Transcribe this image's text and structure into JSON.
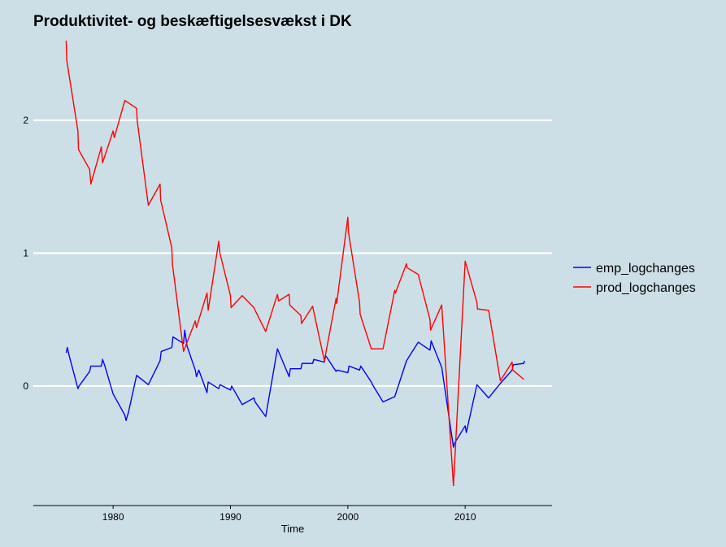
{
  "chart_data": {
    "type": "line",
    "title": "Produktivitet- og beskæftigelsesvækst i DK",
    "xlabel": "Time",
    "ylabel": "",
    "xlim": [
      1973.2,
      2017.4
    ],
    "ylim": [
      -0.9,
      2.6
    ],
    "x_ticks": [
      1980,
      1990,
      2000,
      2010
    ],
    "y_ticks": [
      0,
      1,
      2
    ],
    "grid": "horizontal-major",
    "legend_position": "right",
    "colors": {
      "background": "#cddfe6",
      "grid": "#ffffff"
    },
    "series": [
      {
        "name": "emp_logchanges",
        "color": "#0000ff",
        "points": [
          [
            1976.0,
            0.25
          ],
          [
            1976.1,
            0.29
          ],
          [
            1976.25,
            0.23
          ],
          [
            1977.0,
            -0.02
          ],
          [
            1977.1,
            0.0
          ],
          [
            1978.0,
            0.11
          ],
          [
            1978.1,
            0.15
          ],
          [
            1979.0,
            0.15
          ],
          [
            1979.1,
            0.2
          ],
          [
            1979.3,
            0.15
          ],
          [
            1980.0,
            -0.06
          ],
          [
            1981.0,
            -0.22
          ],
          [
            1981.1,
            -0.26
          ],
          [
            1981.3,
            -0.2
          ],
          [
            1982.0,
            0.08
          ],
          [
            1983.0,
            0.01
          ],
          [
            1984.0,
            0.19
          ],
          [
            1984.1,
            0.26
          ],
          [
            1985.0,
            0.29
          ],
          [
            1985.1,
            0.37
          ],
          [
            1986.0,
            0.32
          ],
          [
            1986.1,
            0.42
          ],
          [
            1986.3,
            0.3
          ],
          [
            1987.0,
            0.12
          ],
          [
            1987.1,
            0.07
          ],
          [
            1987.3,
            0.12
          ],
          [
            1988.0,
            -0.05
          ],
          [
            1988.1,
            0.03
          ],
          [
            1989.0,
            -0.02
          ],
          [
            1989.1,
            0.01
          ],
          [
            1990.0,
            -0.03
          ],
          [
            1990.1,
            0.0
          ],
          [
            1991.0,
            -0.14
          ],
          [
            1992.0,
            -0.09
          ],
          [
            1992.1,
            -0.12
          ],
          [
            1993.0,
            -0.23
          ],
          [
            1994.0,
            0.28
          ],
          [
            1995.0,
            0.07
          ],
          [
            1995.1,
            0.13
          ],
          [
            1996.0,
            0.13
          ],
          [
            1996.1,
            0.17
          ],
          [
            1997.0,
            0.17
          ],
          [
            1997.1,
            0.2
          ],
          [
            1998.0,
            0.18
          ],
          [
            1998.1,
            0.23
          ],
          [
            1999.0,
            0.11
          ],
          [
            1999.1,
            0.12
          ],
          [
            2000.0,
            0.1
          ],
          [
            2000.1,
            0.15
          ],
          [
            2001.0,
            0.12
          ],
          [
            2001.1,
            0.15
          ],
          [
            2002.0,
            0.03
          ],
          [
            2002.1,
            0.01
          ],
          [
            2003.0,
            -0.12
          ],
          [
            2004.0,
            -0.08
          ],
          [
            2005.0,
            0.19
          ],
          [
            2006.0,
            0.33
          ],
          [
            2007.0,
            0.27
          ],
          [
            2007.1,
            0.34
          ],
          [
            2008.0,
            0.14
          ],
          [
            2009.0,
            -0.46
          ],
          [
            2009.1,
            -0.43
          ],
          [
            2010.0,
            -0.3
          ],
          [
            2010.1,
            -0.35
          ],
          [
            2011.0,
            0.01
          ],
          [
            2012.0,
            -0.09
          ],
          [
            2013.0,
            0.02
          ],
          [
            2014.0,
            0.12
          ],
          [
            2014.1,
            0.16
          ],
          [
            2015.0,
            0.17
          ],
          [
            2015.05,
            0.19
          ]
        ]
      },
      {
        "name": "prod_logchanges",
        "color": "#ff0000",
        "points": [
          [
            1976.0,
            2.6
          ],
          [
            1976.05,
            2.45
          ],
          [
            1977.0,
            1.92
          ],
          [
            1977.05,
            1.78
          ],
          [
            1978.0,
            1.63
          ],
          [
            1978.1,
            1.52
          ],
          [
            1979.0,
            1.8
          ],
          [
            1979.1,
            1.68
          ],
          [
            1980.0,
            1.92
          ],
          [
            1980.1,
            1.87
          ],
          [
            1981.0,
            2.15
          ],
          [
            1982.0,
            2.09
          ],
          [
            1982.05,
            2.0
          ],
          [
            1983.0,
            1.36
          ],
          [
            1984.0,
            1.52
          ],
          [
            1984.05,
            1.4
          ],
          [
            1985.0,
            1.04
          ],
          [
            1985.05,
            0.92
          ],
          [
            1986.0,
            0.26
          ],
          [
            1987.0,
            0.49
          ],
          [
            1987.1,
            0.44
          ],
          [
            1988.0,
            0.7
          ],
          [
            1988.1,
            0.57
          ],
          [
            1989.0,
            1.09
          ],
          [
            1989.1,
            1.0
          ],
          [
            1990.0,
            0.68
          ],
          [
            1990.05,
            0.59
          ],
          [
            1991.0,
            0.68
          ],
          [
            1992.0,
            0.59
          ],
          [
            1992.1,
            0.57
          ],
          [
            1993.0,
            0.41
          ],
          [
            1994.0,
            0.69
          ],
          [
            1994.1,
            0.64
          ],
          [
            1995.0,
            0.69
          ],
          [
            1995.05,
            0.61
          ],
          [
            1996.0,
            0.53
          ],
          [
            1996.05,
            0.47
          ],
          [
            1997.0,
            0.6
          ],
          [
            1998.0,
            0.19
          ],
          [
            1999.0,
            0.66
          ],
          [
            1999.05,
            0.62
          ],
          [
            2000.0,
            1.27
          ],
          [
            2000.05,
            1.16
          ],
          [
            2001.0,
            0.63
          ],
          [
            2001.05,
            0.54
          ],
          [
            2002.0,
            0.28
          ],
          [
            2003.0,
            0.28
          ],
          [
            2004.0,
            0.72
          ],
          [
            2004.05,
            0.7
          ],
          [
            2005.0,
            0.92
          ],
          [
            2005.05,
            0.89
          ],
          [
            2006.0,
            0.84
          ],
          [
            2007.0,
            0.5
          ],
          [
            2007.05,
            0.42
          ],
          [
            2008.0,
            0.61
          ],
          [
            2009.0,
            -0.75
          ],
          [
            2010.0,
            0.94
          ],
          [
            2011.0,
            0.63
          ],
          [
            2011.05,
            0.58
          ],
          [
            2012.0,
            0.57
          ],
          [
            2013.0,
            0.04
          ],
          [
            2014.0,
            0.18
          ],
          [
            2014.05,
            0.12
          ],
          [
            2015.0,
            0.05
          ]
        ]
      }
    ]
  }
}
